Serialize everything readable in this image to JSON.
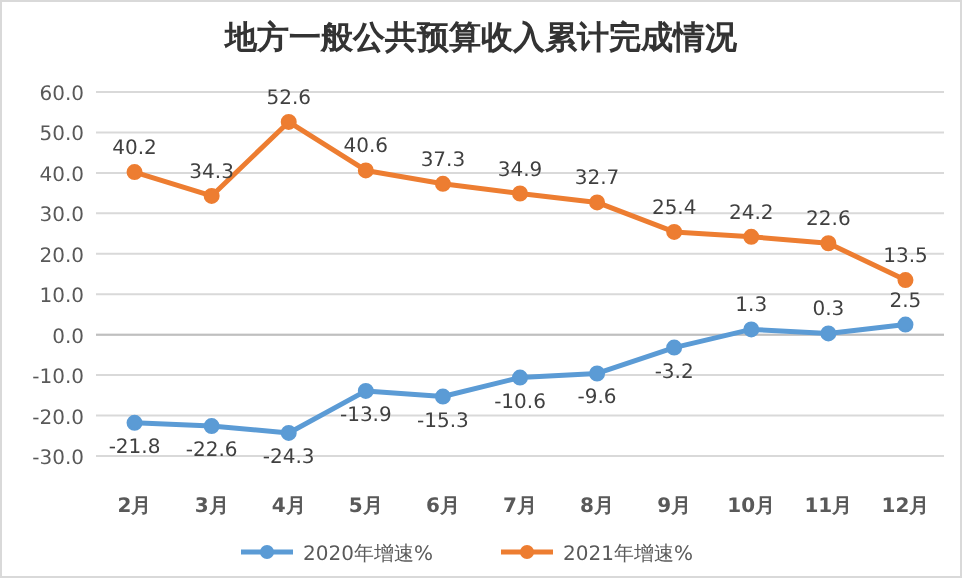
{
  "chart_data": {
    "type": "line",
    "title": "地方一般公共预算收入累计完成情况",
    "categories": [
      "2月",
      "3月",
      "4月",
      "5月",
      "6月",
      "7月",
      "8月",
      "9月",
      "10月",
      "11月",
      "12月"
    ],
    "series": [
      {
        "name": "2020年增速%",
        "color": "#5b9bd5",
        "values": [
          -21.8,
          -22.6,
          -24.3,
          -13.9,
          -15.3,
          -10.6,
          -9.6,
          -3.2,
          1.3,
          0.3,
          2.5
        ]
      },
      {
        "name": "2021年增速%",
        "color": "#ed7d31",
        "values": [
          40.2,
          34.3,
          52.6,
          40.6,
          37.3,
          34.9,
          32.7,
          25.4,
          24.2,
          22.6,
          13.5
        ]
      }
    ],
    "ylim": [
      -30,
      60
    ],
    "yticks": [
      {
        "value": -30,
        "label": "-30.0"
      },
      {
        "value": -20,
        "label": "-20.0"
      },
      {
        "value": -10,
        "label": "-10.0"
      },
      {
        "value": 0,
        "label": "0.0"
      },
      {
        "value": 10,
        "label": "10.0"
      },
      {
        "value": 20,
        "label": "20.0"
      },
      {
        "value": 30,
        "label": "30.0"
      },
      {
        "value": 40,
        "label": "40.0"
      },
      {
        "value": 50,
        "label": "50.0"
      },
      {
        "value": 60,
        "label": "60.0"
      }
    ],
    "grid": "y",
    "legend": "bottom",
    "marker": "circle",
    "line_style": "solid",
    "data_labels": true
  }
}
